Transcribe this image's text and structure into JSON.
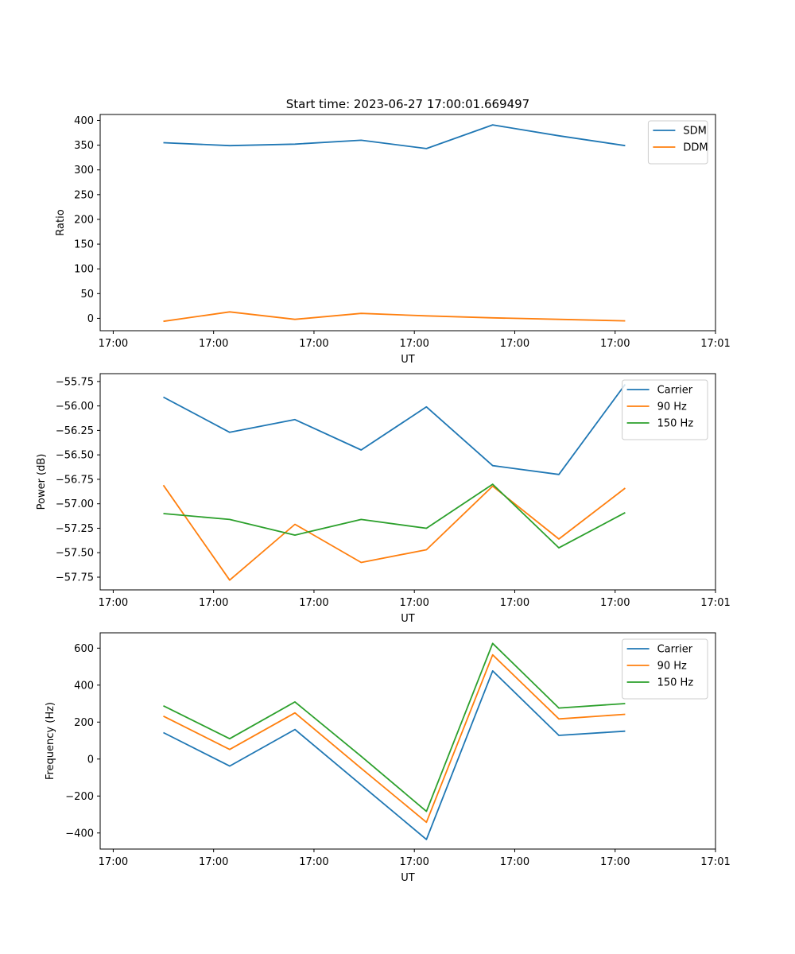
{
  "figure": {
    "title": "Start time: 2023-06-27 17:00:01.669497"
  },
  "chart_data": [
    {
      "type": "line",
      "title": "Start time: 2023-06-27 17:00:01.669497",
      "xlabel": "UT",
      "ylabel": "Ratio",
      "x_tick_labels": [
        "17:00",
        "17:00",
        "17:00",
        "17:00",
        "17:00",
        "17:00",
        "17:01"
      ],
      "y_ticks": [
        0,
        50,
        100,
        150,
        200,
        250,
        300,
        350,
        400
      ],
      "ylim": [
        -25,
        412
      ],
      "x_index": [
        0.5,
        1.16,
        1.81,
        2.47,
        3.12,
        3.78,
        4.44,
        5.1
      ],
      "grid": false,
      "legend_position": "top-right",
      "series": [
        {
          "name": "SDM",
          "color": "#1f77b4",
          "values": [
            355,
            349,
            352,
            360,
            343,
            391,
            369,
            349
          ]
        },
        {
          "name": "DDM",
          "color": "#ff7f0e",
          "values": [
            -6,
            13,
            -2,
            10,
            5,
            1,
            -2,
            -5
          ]
        }
      ]
    },
    {
      "type": "line",
      "xlabel": "UT",
      "ylabel": "Power (dB)",
      "x_tick_labels": [
        "17:00",
        "17:00",
        "17:00",
        "17:00",
        "17:00",
        "17:00",
        "17:01"
      ],
      "y_ticks": [
        -57.75,
        -57.5,
        -57.25,
        -57.0,
        -56.75,
        -56.5,
        -56.25,
        -56.0,
        -55.75
      ],
      "y_tick_labels": [
        "−57.75",
        "−57.50",
        "−57.25",
        "−57.00",
        "−56.75",
        "−56.50",
        "−56.25",
        "−56.00",
        "−55.75"
      ],
      "ylim": [
        -57.88,
        -55.67
      ],
      "x_index": [
        0.5,
        1.16,
        1.81,
        2.47,
        3.12,
        3.78,
        4.44,
        5.1
      ],
      "grid": false,
      "legend_position": "top-right",
      "series": [
        {
          "name": "Carrier",
          "color": "#1f77b4",
          "values": [
            -55.91,
            -56.27,
            -56.14,
            -56.45,
            -56.01,
            -56.61,
            -56.7,
            -55.78
          ]
        },
        {
          "name": "90 Hz",
          "color": "#ff7f0e",
          "values": [
            -56.81,
            -57.78,
            -57.21,
            -57.6,
            -57.47,
            -56.82,
            -57.36,
            -56.84
          ]
        },
        {
          "name": "150 Hz",
          "color": "#2ca02c",
          "values": [
            -57.1,
            -57.16,
            -57.32,
            -57.16,
            -57.25,
            -56.8,
            -57.45,
            -57.09
          ]
        }
      ]
    },
    {
      "type": "line",
      "xlabel": "UT",
      "ylabel": "Frequency (Hz)",
      "x_tick_labels": [
        "17:00",
        "17:00",
        "17:00",
        "17:00",
        "17:00",
        "17:00",
        "17:01"
      ],
      "y_ticks": [
        -400,
        -200,
        0,
        200,
        400,
        600
      ],
      "y_tick_labels": [
        "−400",
        "−200",
        "0",
        "200",
        "400",
        "600"
      ],
      "ylim": [
        -487,
        683
      ],
      "x_index": [
        0.5,
        1.16,
        1.81,
        2.47,
        3.12,
        3.78,
        4.44,
        5.1
      ],
      "grid": false,
      "legend_position": "top-right",
      "series": [
        {
          "name": "Carrier",
          "color": "#1f77b4",
          "values": [
            143,
            -38,
            160,
            -140,
            -435,
            477,
            128,
            151
          ]
        },
        {
          "name": "90 Hz",
          "color": "#ff7f0e",
          "values": [
            232,
            52,
            250,
            -50,
            -342,
            564,
            217,
            242
          ]
        },
        {
          "name": "150 Hz",
          "color": "#2ca02c",
          "values": [
            288,
            110,
            309,
            15,
            -283,
            626,
            276,
            300
          ]
        }
      ]
    }
  ]
}
